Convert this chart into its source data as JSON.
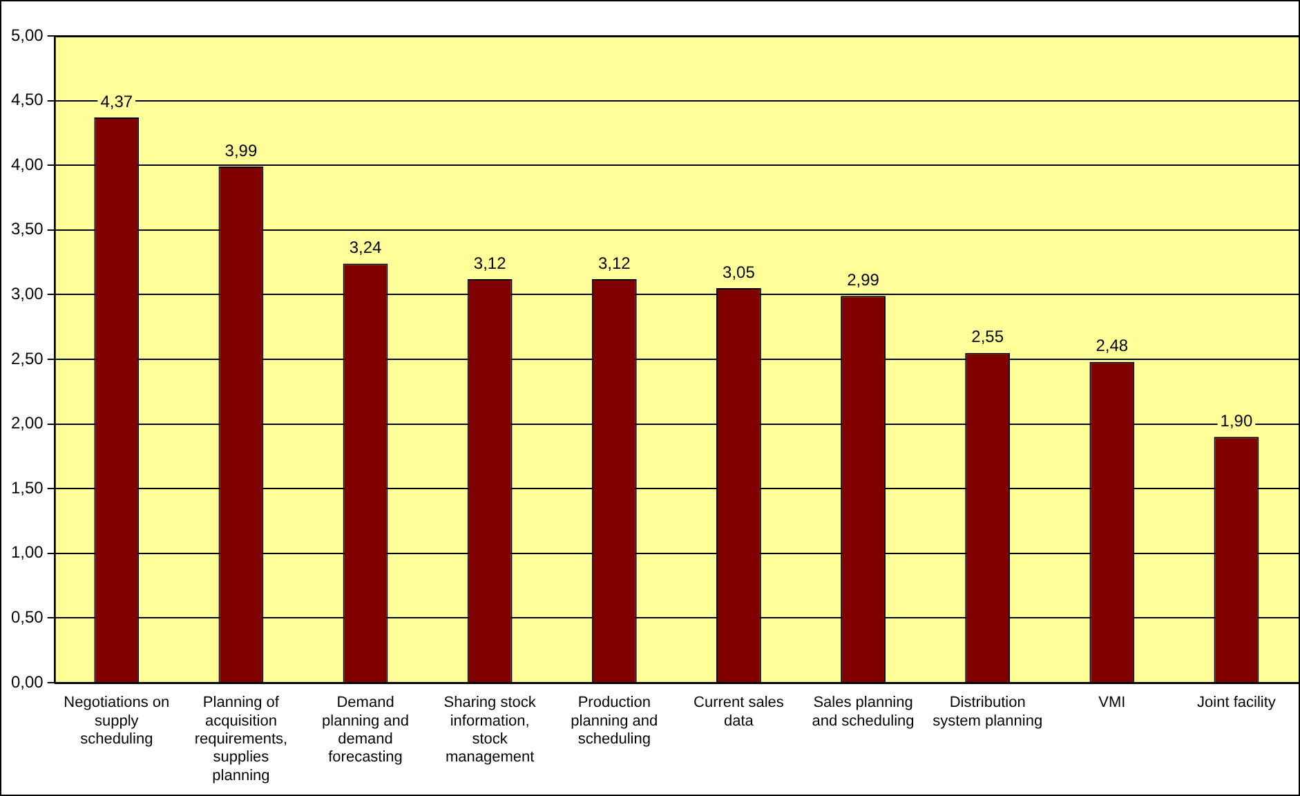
{
  "chart_data": {
    "type": "bar",
    "categories": [
      "Negotiations on supply scheduling",
      "Planning of acquisition requirements, supplies planning",
      "Demand planning and demand forecasting",
      "Sharing stock information, stock management",
      "Production planning and scheduling",
      "Current sales data",
      "Sales planning and scheduling",
      "Distribution system planning",
      "VMI",
      "Joint facility"
    ],
    "values": [
      4.37,
      3.99,
      3.24,
      3.12,
      3.12,
      3.05,
      2.99,
      2.55,
      2.48,
      1.9
    ],
    "value_labels": [
      "4,37",
      "3,99",
      "3,24",
      "3,12",
      "3,12",
      "3,05",
      "2,99",
      "2,55",
      "2,48",
      "1,90"
    ],
    "color": "#800000",
    "ylim": [
      0,
      5
    ],
    "yticks": [
      {
        "value": 0,
        "label": "0,00"
      },
      {
        "value": 0.5,
        "label": "0,50"
      },
      {
        "value": 1,
        "label": "1,00"
      },
      {
        "value": 1.5,
        "label": "1,50"
      },
      {
        "value": 2,
        "label": "2,00"
      },
      {
        "value": 2.5,
        "label": "2,50"
      },
      {
        "value": 3,
        "label": "3,00"
      },
      {
        "value": 3.5,
        "label": "3,50"
      },
      {
        "value": 4,
        "label": "4,00"
      },
      {
        "value": 4.5,
        "label": "4,50"
      },
      {
        "value": 5,
        "label": "5,00"
      }
    ],
    "grid": "y",
    "legend": false
  }
}
